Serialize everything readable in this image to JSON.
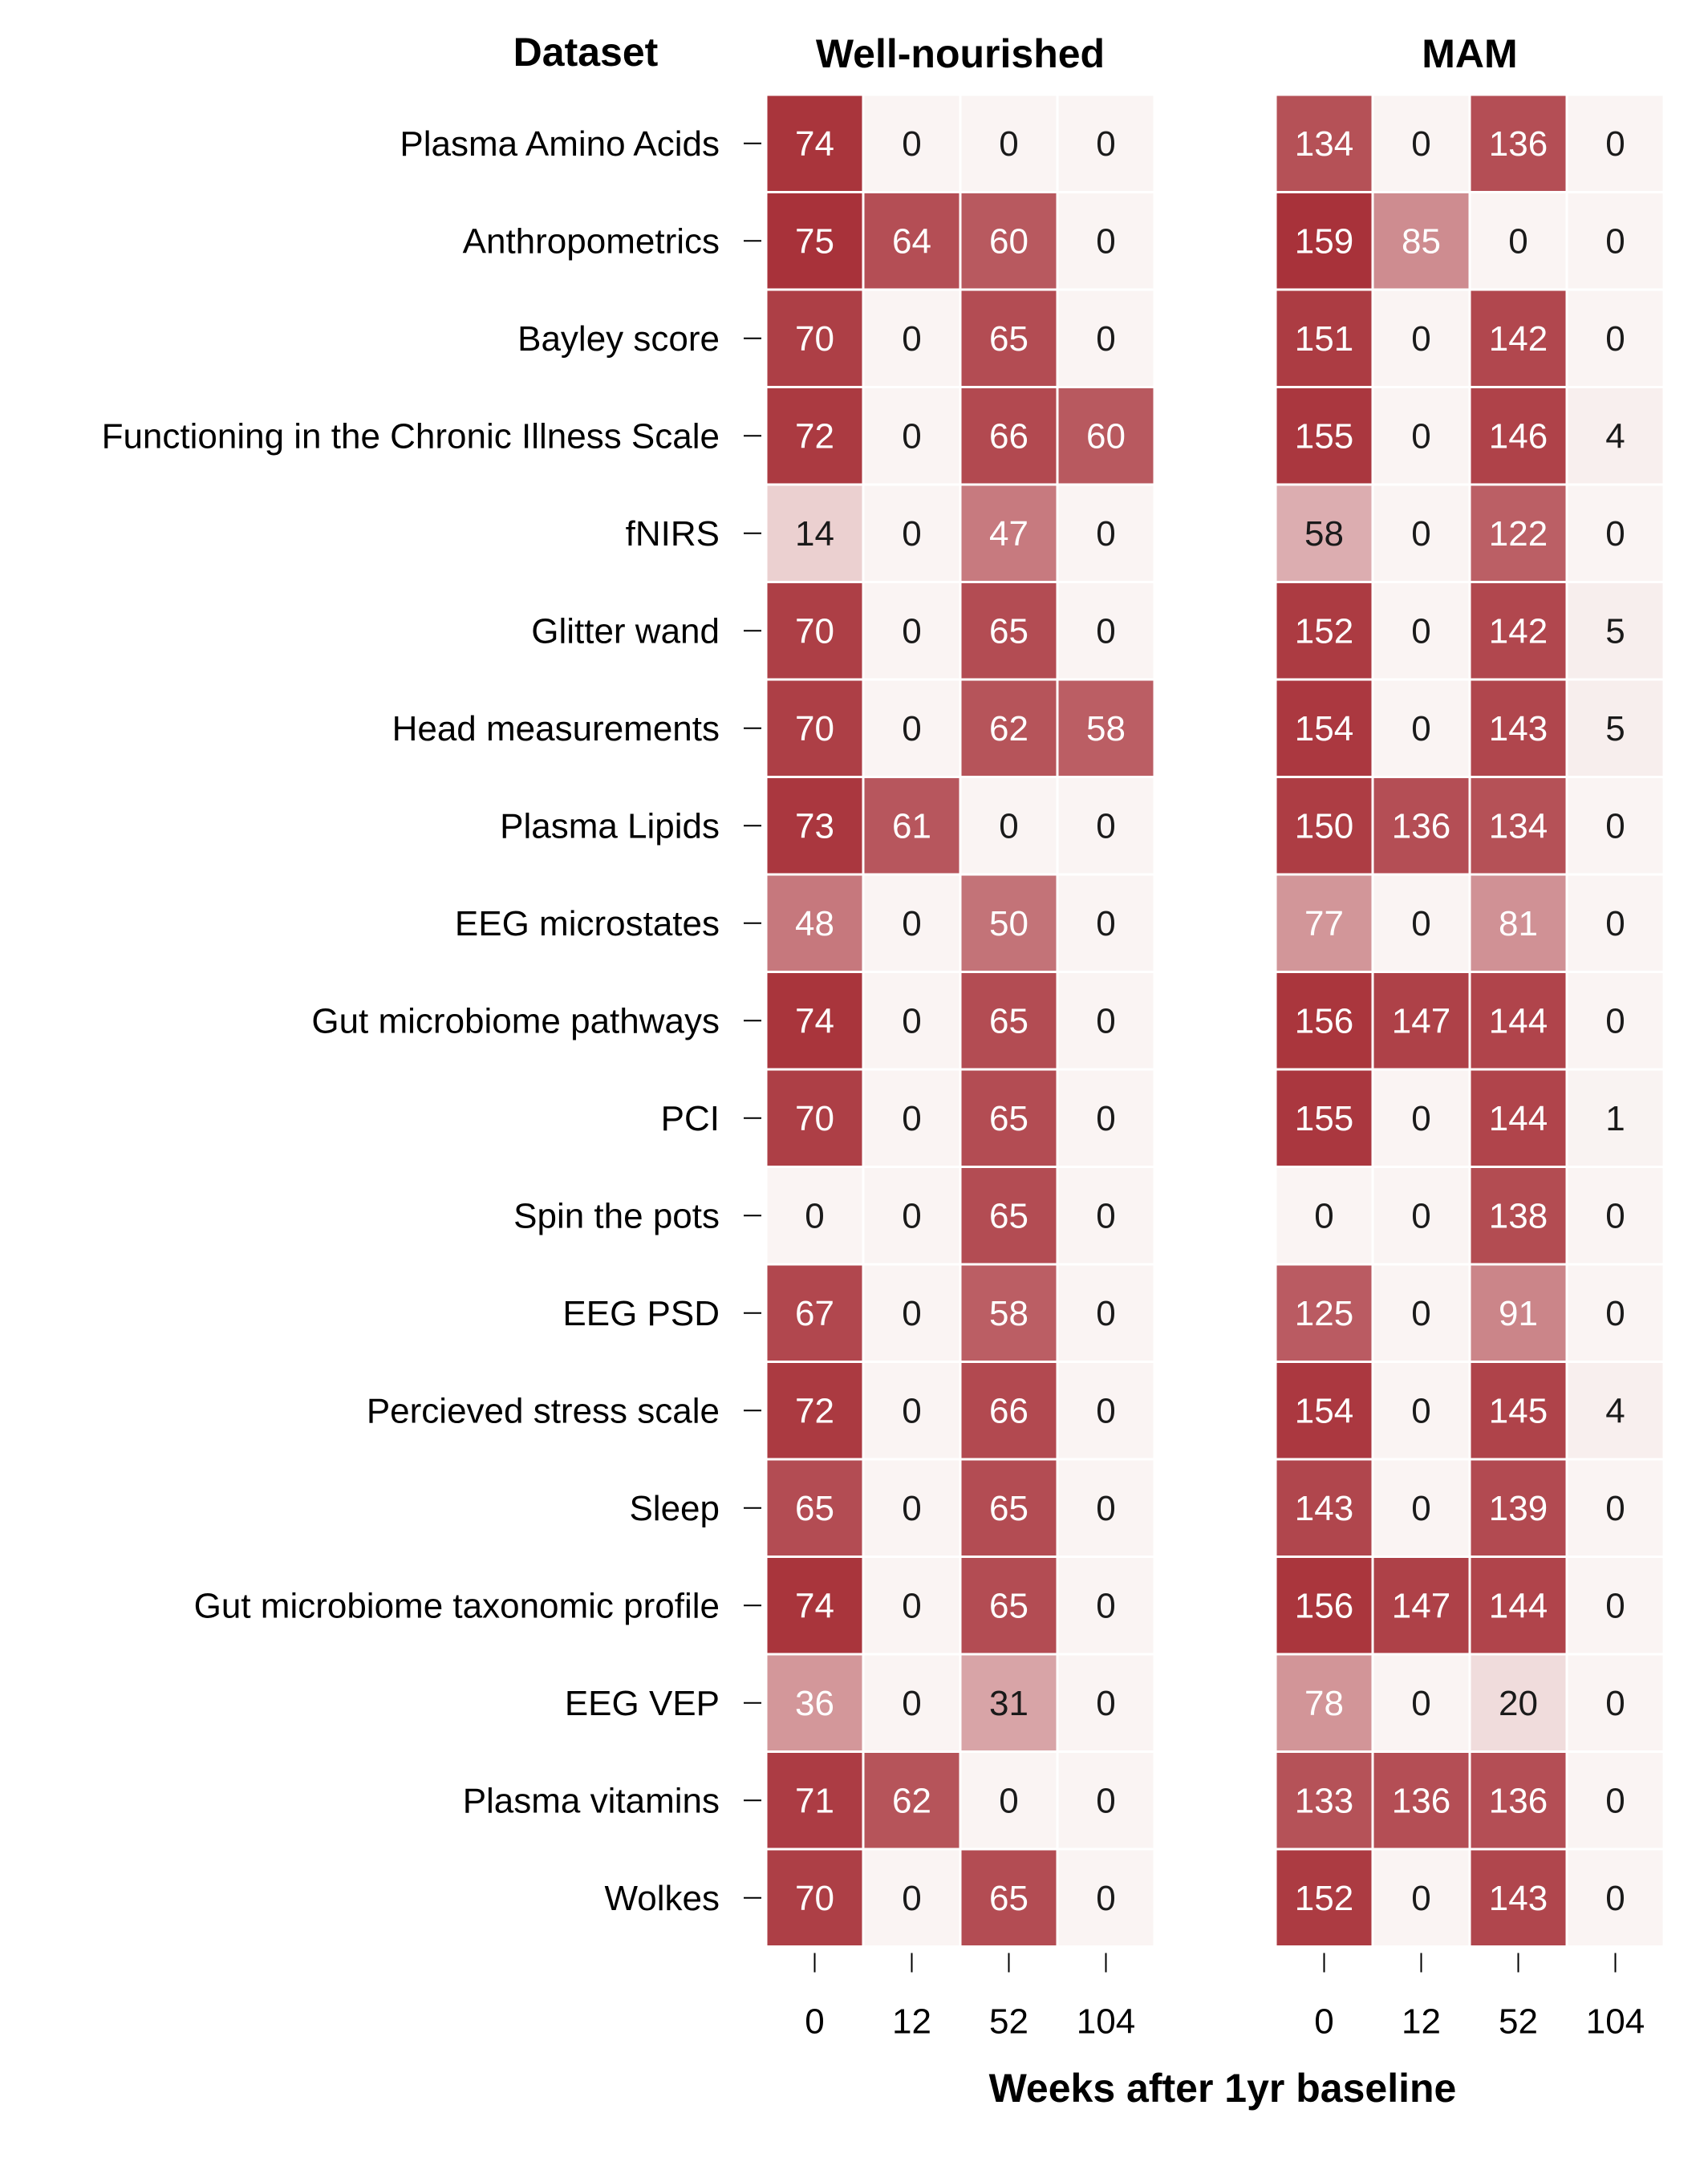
{
  "chart_data": {
    "type": "heatmap",
    "row_header": "Dataset",
    "xlabel": "Weeks after 1yr baseline",
    "x": [
      "0",
      "12",
      "52",
      "104"
    ],
    "rows": [
      "Plasma Amino Acids",
      "Anthropometrics",
      "Bayley score",
      "Functioning in the Chronic Illness Scale",
      "fNIRS",
      "Glitter wand",
      "Head measurements",
      "Plasma Lipids",
      "EEG microstates",
      "Gut microbiome pathways",
      "PCI",
      "Spin the pots",
      "EEG PSD",
      "Percieved stress scale",
      "Sleep",
      "Gut microbiome taxonomic profile",
      "EEG VEP",
      "Plasma vitamins",
      "Wolkes"
    ],
    "panels": [
      {
        "title": "Well-nourished",
        "max": 75,
        "values": [
          [
            74,
            0,
            0,
            0
          ],
          [
            75,
            64,
            60,
            0
          ],
          [
            70,
            0,
            65,
            0
          ],
          [
            72,
            0,
            66,
            60
          ],
          [
            14,
            0,
            47,
            0
          ],
          [
            70,
            0,
            65,
            0
          ],
          [
            70,
            0,
            62,
            58
          ],
          [
            73,
            61,
            0,
            0
          ],
          [
            48,
            0,
            50,
            0
          ],
          [
            74,
            0,
            65,
            0
          ],
          [
            70,
            0,
            65,
            0
          ],
          [
            0,
            0,
            65,
            0
          ],
          [
            67,
            0,
            58,
            0
          ],
          [
            72,
            0,
            66,
            0
          ],
          [
            65,
            0,
            65,
            0
          ],
          [
            74,
            0,
            65,
            0
          ],
          [
            36,
            0,
            31,
            0
          ],
          [
            71,
            62,
            0,
            0
          ],
          [
            70,
            0,
            65,
            0
          ]
        ]
      },
      {
        "title": "MAM",
        "max": 159,
        "values": [
          [
            134,
            0,
            136,
            0
          ],
          [
            159,
            85,
            0,
            0
          ],
          [
            151,
            0,
            142,
            0
          ],
          [
            155,
            0,
            146,
            4
          ],
          [
            58,
            0,
            122,
            0
          ],
          [
            152,
            0,
            142,
            5
          ],
          [
            154,
            0,
            143,
            5
          ],
          [
            150,
            136,
            134,
            0
          ],
          [
            77,
            0,
            81,
            0
          ],
          [
            156,
            147,
            144,
            0
          ],
          [
            155,
            0,
            144,
            1
          ],
          [
            0,
            0,
            138,
            0
          ],
          [
            125,
            0,
            91,
            0
          ],
          [
            154,
            0,
            145,
            4
          ],
          [
            143,
            0,
            139,
            0
          ],
          [
            156,
            147,
            144,
            0
          ],
          [
            78,
            0,
            20,
            0
          ],
          [
            133,
            136,
            136,
            0
          ],
          [
            152,
            0,
            143,
            0
          ]
        ]
      }
    ],
    "colors": {
      "low": "#faf4f3",
      "high": "#a8323a"
    },
    "grid": false,
    "legend": "none"
  }
}
